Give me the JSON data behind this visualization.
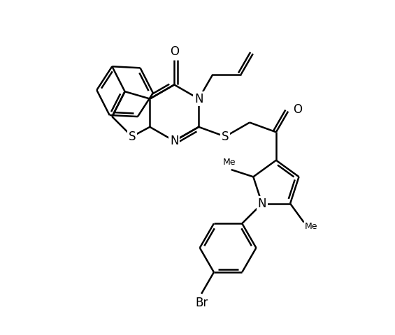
{
  "bg_color": "#ffffff",
  "line_color": "#000000",
  "lw": 1.8,
  "figsize": [
    5.65,
    4.8
  ],
  "dpi": 100,
  "xlim": [
    0,
    11
  ],
  "ylim": [
    0,
    10
  ]
}
